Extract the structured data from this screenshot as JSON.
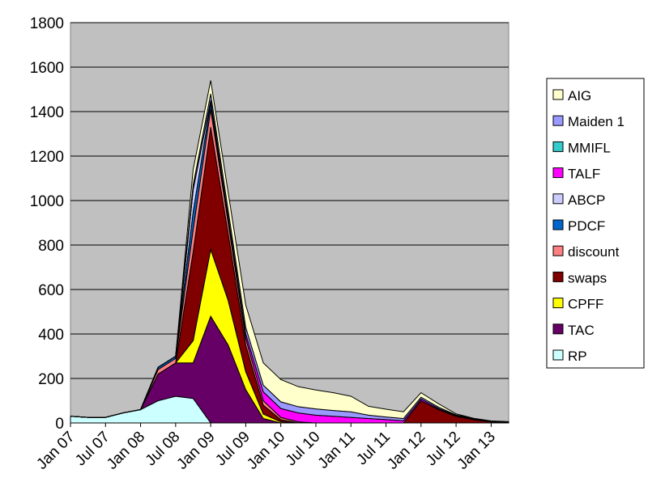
{
  "chart_data": {
    "type": "stacked-area",
    "categories": [
      "Jan 07",
      null,
      "Jul 07",
      null,
      "Jan 08",
      null,
      "Jul 08",
      null,
      "Jan 09",
      null,
      "Jul 09",
      null,
      "Jan 10",
      null,
      "Jul 10",
      null,
      "Jan 11",
      null,
      "Jul 11",
      null,
      "Jan 12",
      null,
      "Jul 12",
      null,
      "Jan 13",
      null
    ],
    "ylim": [
      0,
      1800
    ],
    "yticks": [
      0,
      200,
      400,
      600,
      800,
      1000,
      1200,
      1400,
      1600,
      1800
    ],
    "grid": true,
    "legend": "right",
    "series": [
      {
        "name": "RP",
        "color": "#ccffff",
        "values": [
          30,
          25,
          25,
          45,
          60,
          100,
          120,
          110,
          0,
          0,
          0,
          0,
          0,
          0,
          0,
          0,
          0,
          0,
          0,
          0,
          0,
          0,
          0,
          0,
          0,
          0
        ]
      },
      {
        "name": "TAC",
        "color": "#660066",
        "values": [
          0,
          0,
          0,
          0,
          0,
          120,
          150,
          160,
          480,
          350,
          150,
          20,
          0,
          0,
          0,
          0,
          0,
          0,
          0,
          0,
          0,
          0,
          0,
          0,
          0,
          0
        ]
      },
      {
        "name": "CPFF",
        "color": "#ffff00",
        "values": [
          0,
          0,
          0,
          0,
          0,
          0,
          0,
          100,
          300,
          200,
          80,
          20,
          5,
          0,
          0,
          0,
          0,
          0,
          0,
          0,
          0,
          0,
          0,
          0,
          0,
          0
        ]
      },
      {
        "name": "swaps",
        "color": "#800000",
        "values": [
          0,
          0,
          0,
          0,
          0,
          0,
          0,
          400,
          550,
          300,
          120,
          40,
          10,
          0,
          0,
          0,
          0,
          0,
          0,
          0,
          100,
          60,
          30,
          15,
          5,
          3
        ]
      },
      {
        "name": "discount",
        "color": "#ff8080",
        "values": [
          0,
          0,
          0,
          0,
          0,
          20,
          20,
          100,
          80,
          50,
          30,
          20,
          10,
          5,
          0,
          0,
          0,
          0,
          0,
          0,
          0,
          0,
          0,
          0,
          0,
          0
        ]
      },
      {
        "name": "PDCF",
        "color": "#0066cc",
        "values": [
          0,
          0,
          0,
          0,
          0,
          10,
          10,
          80,
          30,
          10,
          0,
          0,
          0,
          0,
          0,
          0,
          0,
          0,
          0,
          0,
          0,
          0,
          0,
          0,
          0,
          0
        ]
      },
      {
        "name": "ABCP",
        "color": "#ccccff",
        "values": [
          0,
          0,
          0,
          0,
          0,
          0,
          0,
          100,
          10,
          5,
          0,
          0,
          0,
          0,
          0,
          0,
          0,
          0,
          0,
          0,
          0,
          0,
          0,
          0,
          0,
          0
        ]
      },
      {
        "name": "TALF",
        "color": "#ff00ff",
        "values": [
          0,
          0,
          0,
          0,
          0,
          0,
          0,
          0,
          0,
          10,
          20,
          40,
          40,
          40,
          35,
          30,
          25,
          20,
          15,
          10,
          8,
          5,
          3,
          2,
          1,
          1
        ]
      },
      {
        "name": "MMIFL",
        "color": "#33cccc",
        "values": [
          0,
          0,
          0,
          0,
          0,
          0,
          0,
          0,
          0,
          0,
          0,
          0,
          0,
          0,
          0,
          0,
          0,
          0,
          0,
          0,
          0,
          0,
          0,
          0,
          0,
          0
        ]
      },
      {
        "name": "Maiden 1",
        "color": "#9999ff",
        "values": [
          0,
          0,
          0,
          0,
          0,
          0,
          0,
          20,
          30,
          30,
          30,
          30,
          30,
          28,
          28,
          26,
          25,
          15,
          12,
          10,
          8,
          6,
          3,
          2,
          1,
          1
        ]
      },
      {
        "name": "AIG",
        "color": "#ffffcc",
        "values": [
          0,
          0,
          0,
          0,
          0,
          0,
          0,
          70,
          60,
          80,
          100,
          100,
          100,
          90,
          85,
          80,
          70,
          40,
          35,
          30,
          20,
          15,
          5,
          2,
          2,
          1
        ]
      }
    ]
  }
}
